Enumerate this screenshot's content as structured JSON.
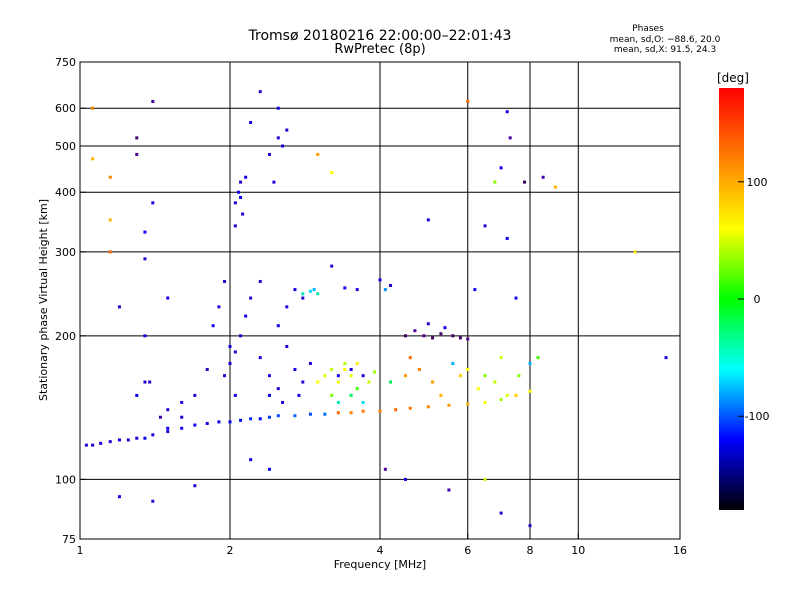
{
  "chart_data": {
    "type": "scatter",
    "title": "Tromsø 20180216 22:00:00–22:01:43",
    "subtitle": "RwPretec (8p)",
    "xlabel": "Frequency [MHz]",
    "ylabel": "Stationary phase Virtual Height [km]",
    "x_scale": "log",
    "y_scale": "log",
    "xlim": [
      1,
      16
    ],
    "ylim": [
      75,
      750
    ],
    "x_ticks": [
      1,
      2,
      4,
      6,
      8,
      10,
      16
    ],
    "x_gridlines": [
      2,
      4,
      6,
      8,
      10
    ],
    "y_ticks": [
      75,
      100,
      200,
      300,
      400,
      500,
      600,
      750
    ],
    "y_gridlines": [
      100,
      200,
      300,
      400,
      500,
      600
    ],
    "grid": true,
    "stats": {
      "heading": "Phases",
      "line_o": "mean, sd,O: −88.6, 20.0",
      "line_x": "mean, sd,X:  91.5, 24.3"
    },
    "colorbar": {
      "label": "[deg]",
      "range": [
        -180,
        180
      ],
      "ticks": [
        100,
        0,
        -100
      ],
      "colors": [
        "#ff0000",
        "#ff8000",
        "#ffff00",
        "#00ff00",
        "#00ffff",
        "#0000ff",
        "#000000"
      ]
    },
    "series": [
      {
        "points": [
          [
            1.03,
            118,
            -105
          ],
          [
            1.06,
            118,
            -110
          ],
          [
            1.1,
            119,
            -105
          ],
          [
            1.15,
            120,
            -108
          ],
          [
            1.2,
            121,
            -100
          ],
          [
            1.25,
            121,
            -110
          ],
          [
            1.3,
            122,
            -105
          ],
          [
            1.35,
            122,
            -95
          ],
          [
            1.4,
            124,
            -100
          ],
          [
            1.5,
            126,
            -105
          ],
          [
            1.6,
            128,
            -100
          ],
          [
            1.7,
            130,
            -95
          ],
          [
            1.8,
            131,
            -100
          ],
          [
            1.9,
            132,
            -95
          ],
          [
            2.0,
            132,
            -90
          ],
          [
            2.1,
            133,
            -85
          ],
          [
            2.2,
            134,
            -80
          ],
          [
            2.3,
            134,
            -90
          ],
          [
            2.4,
            135,
            -75
          ],
          [
            2.5,
            136,
            -70
          ],
          [
            2.7,
            136,
            -60
          ],
          [
            2.9,
            137,
            -70
          ],
          [
            3.1,
            137,
            -60
          ],
          [
            3.3,
            138,
            140
          ],
          [
            3.5,
            138,
            130
          ],
          [
            3.7,
            139,
            135
          ],
          [
            4.0,
            139,
            130
          ],
          [
            4.3,
            140,
            140
          ],
          [
            4.6,
            141,
            135
          ],
          [
            5.0,
            142,
            130
          ],
          [
            5.5,
            143,
            120
          ],
          [
            6.0,
            144,
            110
          ],
          [
            6.5,
            145,
            80
          ],
          [
            7.0,
            147,
            50
          ],
          [
            7.5,
            150,
            100
          ],
          [
            8.0,
            153,
            80
          ],
          [
            1.3,
            150,
            -95
          ],
          [
            1.35,
            160,
            -105
          ],
          [
            1.45,
            135,
            -120
          ],
          [
            1.5,
            140,
            -110
          ],
          [
            1.6,
            145,
            -105
          ],
          [
            1.7,
            150,
            -110
          ],
          [
            1.8,
            170,
            -115
          ],
          [
            1.85,
            210,
            -100
          ],
          [
            1.9,
            230,
            -105
          ],
          [
            1.95,
            260,
            -110
          ],
          [
            2.0,
            190,
            -100
          ],
          [
            2.05,
            150,
            -100
          ],
          [
            2.0,
            175,
            -105
          ],
          [
            2.1,
            200,
            -110
          ],
          [
            2.15,
            220,
            -100
          ],
          [
            2.2,
            240,
            -105
          ],
          [
            1.95,
            165,
            -108
          ],
          [
            2.05,
            185,
            -112
          ],
          [
            2.05,
            380,
            -105
          ],
          [
            2.08,
            400,
            -100
          ],
          [
            2.1,
            420,
            -110
          ],
          [
            2.12,
            360,
            -105
          ],
          [
            2.15,
            430,
            -100
          ],
          [
            2.05,
            340,
            -110
          ],
          [
            2.1,
            390,
            -95
          ],
          [
            2.2,
            560,
            -100
          ],
          [
            2.3,
            650,
            -110
          ],
          [
            2.4,
            480,
            -105
          ],
          [
            2.5,
            520,
            -110
          ],
          [
            2.5,
            600,
            -100
          ],
          [
            2.45,
            420,
            -105
          ],
          [
            2.55,
            500,
            -100
          ],
          [
            2.6,
            540,
            -110
          ],
          [
            2.3,
            180,
            -105
          ],
          [
            2.4,
            165,
            -100
          ],
          [
            2.5,
            155,
            -110
          ],
          [
            2.6,
            190,
            -105
          ],
          [
            2.7,
            170,
            -100
          ],
          [
            2.8,
            160,
            -110
          ],
          [
            2.9,
            175,
            -105
          ],
          [
            2.5,
            210,
            -100
          ],
          [
            2.6,
            230,
            -105
          ],
          [
            2.3,
            260,
            -110
          ],
          [
            2.7,
            250,
            -100
          ],
          [
            2.8,
            240,
            -110
          ],
          [
            2.55,
            145,
            -105
          ],
          [
            2.75,
            150,
            -100
          ],
          [
            2.4,
            150,
            -95
          ],
          [
            2.8,
            245,
            -20
          ],
          [
            2.9,
            248,
            -30
          ],
          [
            3.0,
            245,
            -20
          ],
          [
            3.4,
            252,
            -100
          ],
          [
            3.6,
            250,
            -105
          ],
          [
            3.2,
            280,
            -110
          ],
          [
            2.95,
            250,
            -40
          ],
          [
            3.3,
            165,
            -100
          ],
          [
            3.5,
            170,
            -105
          ],
          [
            3.7,
            165,
            -110
          ],
          [
            4.1,
            250,
            -50
          ],
          [
            4.2,
            255,
            -105
          ],
          [
            4.0,
            262,
            -100
          ],
          [
            3.0,
            160,
            80
          ],
          [
            3.1,
            165,
            70
          ],
          [
            3.2,
            170,
            60
          ],
          [
            3.3,
            160,
            75
          ],
          [
            3.4,
            170,
            80
          ],
          [
            3.5,
            165,
            70
          ],
          [
            3.6,
            175,
            85
          ],
          [
            3.8,
            160,
            60
          ],
          [
            3.3,
            145,
            -20
          ],
          [
            3.5,
            150,
            -10
          ],
          [
            3.7,
            145,
            -30
          ],
          [
            3.2,
            150,
            40
          ],
          [
            3.6,
            155,
            20
          ],
          [
            3.9,
            168,
            50
          ],
          [
            3.4,
            175,
            55
          ],
          [
            4.2,
            160,
            -10
          ],
          [
            4.5,
            165,
            120
          ],
          [
            4.8,
            170,
            130
          ],
          [
            5.1,
            160,
            120
          ],
          [
            5.3,
            150,
            110
          ],
          [
            5.6,
            175,
            -40
          ],
          [
            4.6,
            180,
            140
          ],
          [
            5.8,
            165,
            100
          ],
          [
            6.0,
            170,
            80
          ],
          [
            6.3,
            155,
            80
          ],
          [
            6.8,
            160,
            60
          ],
          [
            7.2,
            150,
            70
          ],
          [
            7.6,
            165,
            40
          ],
          [
            8.0,
            175,
            -40
          ],
          [
            8.3,
            180,
            20
          ],
          [
            7.0,
            180,
            60
          ],
          [
            6.5,
            165,
            40
          ],
          [
            4.5,
            200,
            -150
          ],
          [
            4.7,
            205,
            -130
          ],
          [
            4.9,
            200,
            -140
          ],
          [
            5.1,
            198,
            -150
          ],
          [
            5.3,
            202,
            -145
          ],
          [
            5.6,
            200,
            -150
          ],
          [
            5.8,
            198,
            -145
          ],
          [
            6.0,
            197,
            -140
          ],
          [
            5.4,
            208,
            -100
          ],
          [
            5.0,
            212,
            -110
          ],
          [
            1.06,
            600,
            130
          ],
          [
            1.06,
            470,
            110
          ],
          [
            1.15,
            430,
            130
          ],
          [
            1.15,
            350,
            110
          ],
          [
            1.15,
            300,
            140
          ],
          [
            1.2,
            230,
            -110
          ],
          [
            1.3,
            520,
            -150
          ],
          [
            1.3,
            480,
            -140
          ],
          [
            1.35,
            330,
            -95
          ],
          [
            1.35,
            290,
            -110
          ],
          [
            1.4,
            620,
            -130
          ],
          [
            1.5,
            240,
            -100
          ],
          [
            1.35,
            200,
            -105
          ],
          [
            1.38,
            160,
            -110
          ],
          [
            1.4,
            380,
            -100
          ],
          [
            6.0,
            620,
            140
          ],
          [
            7.2,
            590,
            -100
          ],
          [
            7.0,
            450,
            -100
          ],
          [
            6.8,
            420,
            40
          ],
          [
            7.8,
            420,
            -150
          ],
          [
            8.5,
            430,
            -120
          ],
          [
            9.0,
            410,
            110
          ],
          [
            7.3,
            520,
            -130
          ],
          [
            5.0,
            350,
            -100
          ],
          [
            6.5,
            340,
            -110
          ],
          [
            7.2,
            320,
            -100
          ],
          [
            13.0,
            300,
            90
          ],
          [
            15.0,
            180,
            -100
          ],
          [
            7.0,
            85,
            -110
          ],
          [
            6.5,
            100,
            60
          ],
          [
            3.2,
            440,
            80
          ],
          [
            3.0,
            480,
            120
          ],
          [
            7.5,
            240,
            -100
          ],
          [
            6.2,
            250,
            -100
          ],
          [
            1.4,
            90,
            -110
          ],
          [
            1.2,
            92,
            -100
          ],
          [
            1.7,
            97,
            -105
          ],
          [
            2.2,
            110,
            -100
          ],
          [
            2.4,
            105,
            -95
          ],
          [
            4.1,
            105,
            -130
          ],
          [
            4.5,
            100,
            -100
          ],
          [
            5.5,
            95,
            -120
          ],
          [
            8.0,
            80,
            -110
          ],
          [
            1.5,
            128,
            -95
          ],
          [
            1.6,
            135,
            -105
          ]
        ]
      }
    ]
  }
}
